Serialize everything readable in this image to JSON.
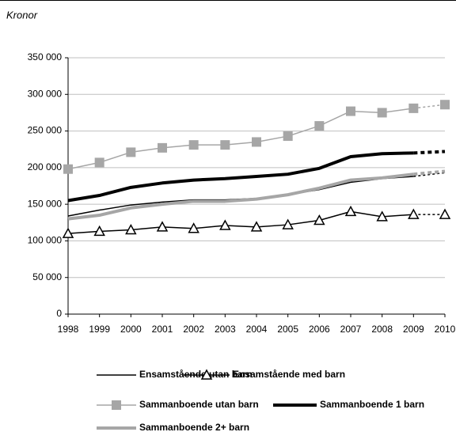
{
  "chart_data": {
    "type": "line",
    "y_label": "Kronor",
    "categories": [
      "1998",
      "1999",
      "2000",
      "2001",
      "2002",
      "2003",
      "2004",
      "2005",
      "2006",
      "2007",
      "2008",
      "2009",
      "2010"
    ],
    "ylim": [
      0,
      350000
    ],
    "yticks": [
      {
        "value": 0,
        "label": "0"
      },
      {
        "value": 50000,
        "label": "50 000"
      },
      {
        "value": 100000,
        "label": "100 000"
      },
      {
        "value": 150000,
        "label": "150 000"
      },
      {
        "value": 200000,
        "label": "200 000"
      },
      {
        "value": 250000,
        "label": "250 000"
      },
      {
        "value": 300000,
        "label": "300 000"
      },
      {
        "value": 350000,
        "label": "350 000"
      }
    ],
    "grid": true,
    "legend": "bottom",
    "dotted_last_segment": true,
    "series": [
      {
        "name": "Ensamstående utan barn",
        "color": "#000000",
        "line_width": 1.5,
        "marker": "none",
        "values": [
          134000,
          142000,
          149000,
          153000,
          156000,
          156000,
          158000,
          163000,
          170000,
          180000,
          185000,
          188000,
          193000
        ]
      },
      {
        "name": "Ensamstående med barn",
        "color": "#000000",
        "line_width": 1.5,
        "marker": "triangle",
        "values": [
          110000,
          113000,
          115000,
          119000,
          117000,
          121000,
          119000,
          122000,
          128000,
          140000,
          133000,
          136000,
          136000
        ]
      },
      {
        "name": "Sammanboende utan barn",
        "color": "#a6a6a6",
        "line_width": 1.5,
        "marker": "square",
        "values": [
          198000,
          207000,
          221000,
          227000,
          231000,
          231000,
          235000,
          243000,
          257000,
          277000,
          275000,
          281000,
          286000
        ]
      },
      {
        "name": "Sammanboende 1 barn",
        "color": "#000000",
        "line_width": 4,
        "marker": "none",
        "values": [
          155000,
          162000,
          173000,
          179000,
          183000,
          185000,
          188000,
          191000,
          199000,
          215000,
          219000,
          220000,
          222000
        ]
      },
      {
        "name": "Sammanboende 2+ barn",
        "color": "#a6a6a6",
        "line_width": 4,
        "marker": "none",
        "values": [
          130000,
          135000,
          145000,
          150000,
          154000,
          154000,
          157000,
          163000,
          172000,
          183000,
          186000,
          191000,
          195000
        ]
      }
    ]
  }
}
